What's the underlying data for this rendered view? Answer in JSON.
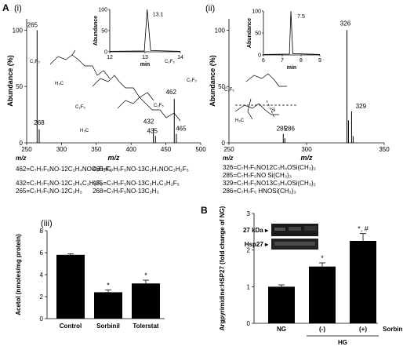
{
  "panel_labels": {
    "A": "A",
    "B": "B",
    "i": "(i)",
    "ii": "(ii)",
    "iii": "(iii)"
  },
  "chart_data": [
    {
      "id": "i",
      "type": "spectrum",
      "xlabel": "m/z",
      "ylabel": "Abundance (%)",
      "xlim": [
        250,
        500
      ],
      "ylim": [
        0,
        110
      ],
      "xticks": [
        250,
        300,
        350,
        400,
        450,
        500
      ],
      "yticks": [
        0,
        50,
        100
      ],
      "peaks": [
        {
          "mz": 265,
          "abundance": 100,
          "label": "265"
        },
        {
          "mz": 268,
          "abundance": 12,
          "label": "268"
        },
        {
          "mz": 432,
          "abundance": 13,
          "label": "432"
        },
        {
          "mz": 435,
          "abundance": 6,
          "label": "435"
        },
        {
          "mz": 462,
          "abundance": 39,
          "label": "462"
        },
        {
          "mz": 465,
          "abundance": 8,
          "label": "465"
        }
      ],
      "inset": {
        "xlabel": "min",
        "ylabel": "Abundance",
        "xlim": [
          12,
          14
        ],
        "ylim": [
          0,
          100
        ],
        "xticks": [
          12,
          13,
          14
        ],
        "yticks": [
          0,
          50,
          100
        ],
        "peak_label": "13.1",
        "peak_time": 13.1
      },
      "fragments": [
        {
          "mz": "462",
          "text": "462=C₇H₇F₅NO-12C₃H₄NOC₃H₂F₅"
        },
        {
          "mz": "465",
          "text": "465=C₇H₇F₅NO-13C₃H₄NOC₃H₂F₅"
        },
        {
          "mz": "432",
          "text": "432=C₇H₇F₅NO-12C₃H₄C₃H₂F₅"
        },
        {
          "mz": "435",
          "text": "435=C₇H₇F₅NO-13C₃H₄C₃H₂F₅"
        },
        {
          "mz": "265",
          "text": "265=C₇H₇F₅NO-12C₃H₃"
        },
        {
          "mz": "268",
          "text": "268=C₇H₇F₅NO-13C₃H₃"
        }
      ]
    },
    {
      "id": "ii",
      "type": "spectrum",
      "xlabel": "m/z",
      "ylabel": "Abundance (%)",
      "xlim": [
        250,
        350
      ],
      "ylim": [
        0,
        110
      ],
      "xticks": [
        250,
        300,
        350
      ],
      "yticks": [
        0,
        50,
        100
      ],
      "peaks": [
        {
          "mz": 285,
          "abundance": 8,
          "label": "285"
        },
        {
          "mz": 286,
          "abundance": 4,
          "label": "286"
        },
        {
          "mz": 326,
          "abundance": 100,
          "label": "326"
        },
        {
          "mz": 327,
          "abundance": 20,
          "label": ""
        },
        {
          "mz": 329,
          "abundance": 28,
          "label": "329"
        },
        {
          "mz": 330,
          "abundance": 6,
          "label": ""
        }
      ],
      "inset": {
        "xlabel": "min",
        "ylabel": "Abundance",
        "xlim": [
          6,
          9
        ],
        "ylim": [
          0,
          100
        ],
        "xticks": [
          6,
          7,
          8,
          9
        ],
        "yticks": [
          0,
          50,
          100
        ],
        "peak_label": "7.5",
        "peak_time": 7.5
      },
      "fragments": [
        {
          "mz": "326",
          "text": "326=C₇H₇F₅NO12C₃H₄OSi(CH₃)₂"
        },
        {
          "mz": "285",
          "text": "285=C₇H₇F₅NO Si(CH₃)₃"
        },
        {
          "mz": "329",
          "text": "329=C₇H₇F₅NO13C₃H₄OSi(CH₃)₂"
        },
        {
          "mz": "286",
          "text": "286=C₇H₇F₅ HNOSi(CH₃)₃"
        }
      ]
    },
    {
      "id": "iii",
      "type": "bar",
      "categories": [
        "Control",
        "Sorbinil",
        "Tolerstat"
      ],
      "values": [
        5.8,
        2.4,
        3.2
      ],
      "errors": [
        0.1,
        0.2,
        0.3
      ],
      "significance": [
        "",
        "*",
        "*"
      ],
      "xlabel": "",
      "ylabel": "Acetol (nmoles/mg protein)",
      "ylim": [
        0,
        8
      ],
      "yticks": [
        0,
        2,
        4,
        6,
        8
      ]
    },
    {
      "id": "B",
      "type": "bar",
      "categories": [
        "NG",
        "(-)",
        "(+)"
      ],
      "values": [
        1.0,
        1.55,
        2.25
      ],
      "errors": [
        0.05,
        0.1,
        0.2
      ],
      "significance": [
        "",
        "*",
        "*, #"
      ],
      "ylabel": "Argpyrimidine:HSP27 (fold change of NG)",
      "ylim": [
        0,
        3
      ],
      "yticks": [
        0,
        1,
        2,
        3
      ],
      "group_label": "HG",
      "treatment_label": "Sorbinil",
      "blot_labels": [
        "27 kDa",
        "Hsp27"
      ]
    }
  ]
}
